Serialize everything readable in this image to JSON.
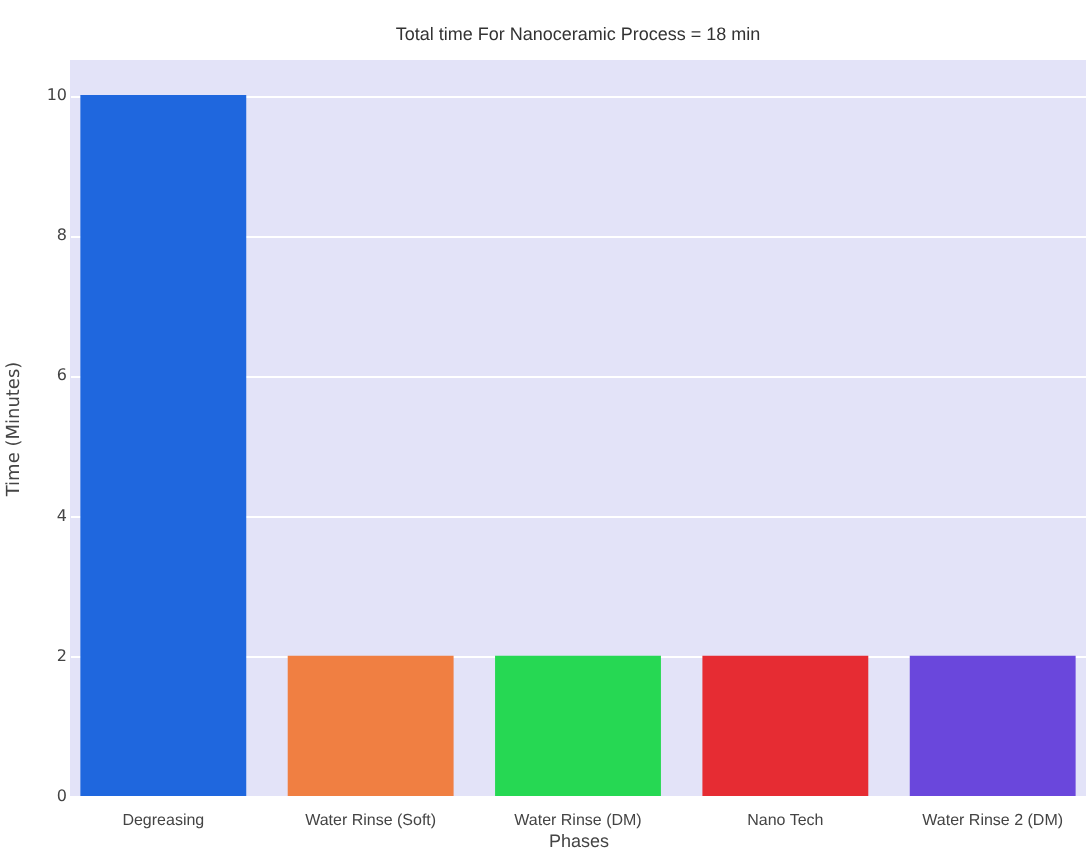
{
  "chart_data": {
    "type": "bar",
    "title": "Total time For Nanoceramic Process = 18 min",
    "xlabel": "Phases",
    "ylabel": "Time (Minutes)",
    "categories": [
      "Degreasing",
      "Water Rinse (Soft)",
      "Water Rinse (DM)",
      "Nano Tech",
      "Water Rinse 2 (DM)"
    ],
    "values": [
      10,
      2,
      2,
      2,
      2
    ],
    "colors": [
      "#1f67de",
      "#f07f42",
      "#26d853",
      "#e62c33",
      "#6a47dc"
    ],
    "ylim": [
      0,
      10.5
    ],
    "yticks": [
      0,
      2,
      4,
      6,
      8,
      10
    ],
    "grid": "y"
  }
}
